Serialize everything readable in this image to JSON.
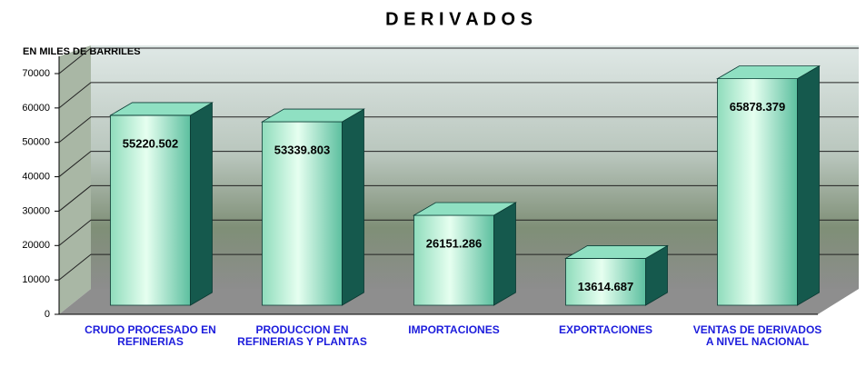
{
  "chart_data": {
    "type": "bar",
    "title": "D E R I V A D O S",
    "y_axis_label": "EN MILES DE BARRILES",
    "categories": [
      "CRUDO PROCESADO EN REFINERIAS",
      "PRODUCCION EN REFINERIAS Y PLANTAS",
      "IMPORTACIONES",
      "EXPORTACIONES",
      "VENTAS DE DERIVADOS A NIVEL NACIONAL"
    ],
    "values": [
      55220.502,
      53339.803,
      26151.286,
      13614.687,
      65878.379
    ],
    "color": "#3fae92",
    "ylim": [
      0,
      70000
    ],
    "yticks": [
      0,
      10000,
      20000,
      30000,
      40000,
      50000,
      60000,
      70000
    ],
    "grid": true
  }
}
